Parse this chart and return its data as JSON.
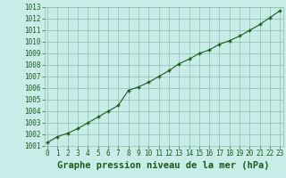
{
  "x": [
    0,
    1,
    2,
    3,
    4,
    5,
    6,
    7,
    8,
    9,
    10,
    11,
    12,
    13,
    14,
    15,
    16,
    17,
    18,
    19,
    20,
    21,
    22,
    23
  ],
  "y": [
    1001.3,
    1001.8,
    1002.1,
    1002.5,
    1003.0,
    1003.5,
    1004.0,
    1004.5,
    1005.8,
    1006.1,
    1006.5,
    1007.0,
    1007.5,
    1008.1,
    1008.5,
    1009.0,
    1009.3,
    1009.8,
    1010.1,
    1010.5,
    1011.0,
    1011.5,
    1012.1,
    1012.7
  ],
  "ylim": [
    1001,
    1013
  ],
  "xlim": [
    -0.3,
    23.3
  ],
  "yticks": [
    1001,
    1002,
    1003,
    1004,
    1005,
    1006,
    1007,
    1008,
    1009,
    1010,
    1011,
    1012,
    1013
  ],
  "xticks": [
    0,
    1,
    2,
    3,
    4,
    5,
    6,
    7,
    8,
    9,
    10,
    11,
    12,
    13,
    14,
    15,
    16,
    17,
    18,
    19,
    20,
    21,
    22,
    23
  ],
  "xlabel": "Graphe pression niveau de la mer (hPa)",
  "line_color": "#1a5c1a",
  "marker": "+",
  "background_color": "#c8ece8",
  "plot_bg_color": "#c8ece8",
  "grid_color": "#8bbfaa",
  "tick_label_color": "#1a5c1a",
  "xlabel_color": "#1a5c1a",
  "tick_fontsize": 5.5,
  "xlabel_fontsize": 7.5
}
